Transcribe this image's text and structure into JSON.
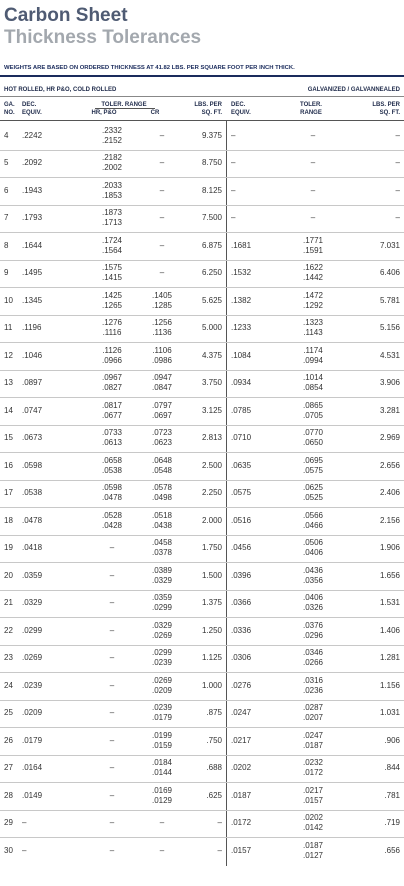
{
  "header": {
    "title_lines": [
      "Carbon Sheet",
      "Thickness Tolerances"
    ],
    "subtitle": "WEIGHTS ARE BASED ON ORDERED THICKNESS AT 41.82 LBS. PER SQUARE FOOT PER INCH THICK."
  },
  "table": {
    "group_headers": [
      "HOT ROLLED, HR P&O, COLD ROLLED",
      "GALVANIZED / GALVANNEALED"
    ],
    "columns": {
      "ga": [
        "GA.",
        "NO."
      ],
      "dec": [
        "DEC.",
        "EQUIV."
      ],
      "tol": "TOLER. RANGE",
      "hr": "HR, P&O",
      "cr": "CR",
      "lbs": [
        "LBS. PER",
        "SQ. FT."
      ],
      "gdec": [
        "DEC.",
        "EQUIV."
      ],
      "gtol": [
        "TOLER.",
        "RANGE"
      ],
      "glbs": [
        "LBS. PER",
        "SQ. FT."
      ]
    },
    "rows": [
      {
        "ga": "4",
        "dec": ".2242",
        "hr": [
          ".2332",
          ".2152"
        ],
        "cr": [
          "–"
        ],
        "lbs": "9.375",
        "gdec": "–",
        "gtol": [
          "–"
        ],
        "glbs": "–"
      },
      {
        "ga": "5",
        "dec": ".2092",
        "hr": [
          ".2182",
          ".2002"
        ],
        "cr": [
          "–"
        ],
        "lbs": "8.750",
        "gdec": "–",
        "gtol": [
          "–"
        ],
        "glbs": "–"
      },
      {
        "ga": "6",
        "dec": ".1943",
        "hr": [
          ".2033",
          ".1853"
        ],
        "cr": [
          "–"
        ],
        "lbs": "8.125",
        "gdec": "–",
        "gtol": [
          "–"
        ],
        "glbs": "–"
      },
      {
        "ga": "7",
        "dec": ".1793",
        "hr": [
          ".1873",
          ".1713"
        ],
        "cr": [
          "–"
        ],
        "lbs": "7.500",
        "gdec": "–",
        "gtol": [
          "–"
        ],
        "glbs": "–"
      },
      {
        "ga": "8",
        "dec": ".1644",
        "hr": [
          ".1724",
          ".1564"
        ],
        "cr": [
          "–"
        ],
        "lbs": "6.875",
        "gdec": ".1681",
        "gtol": [
          ".1771",
          ".1591"
        ],
        "glbs": "7.031"
      },
      {
        "ga": "9",
        "dec": ".1495",
        "hr": [
          ".1575",
          ".1415"
        ],
        "cr": [
          "–"
        ],
        "lbs": "6.250",
        "gdec": ".1532",
        "gtol": [
          ".1622",
          ".1442"
        ],
        "glbs": "6.406"
      },
      {
        "ga": "10",
        "dec": ".1345",
        "hr": [
          ".1425",
          ".1265"
        ],
        "cr": [
          ".1405",
          ".1285"
        ],
        "lbs": "5.625",
        "gdec": ".1382",
        "gtol": [
          ".1472",
          ".1292"
        ],
        "glbs": "5.781"
      },
      {
        "ga": "11",
        "dec": ".1196",
        "hr": [
          ".1276",
          ".1116"
        ],
        "cr": [
          ".1256",
          ".1136"
        ],
        "lbs": "5.000",
        "gdec": ".1233",
        "gtol": [
          ".1323",
          ".1143"
        ],
        "glbs": "5.156"
      },
      {
        "ga": "12",
        "dec": ".1046",
        "hr": [
          ".1126",
          ".0966"
        ],
        "cr": [
          ".1106",
          ".0986"
        ],
        "lbs": "4.375",
        "gdec": ".1084",
        "gtol": [
          ".1174",
          ".0994"
        ],
        "glbs": "4.531"
      },
      {
        "ga": "13",
        "dec": ".0897",
        "hr": [
          ".0967",
          ".0827"
        ],
        "cr": [
          ".0947",
          ".0847"
        ],
        "lbs": "3.750",
        "gdec": ".0934",
        "gtol": [
          ".1014",
          ".0854"
        ],
        "glbs": "3.906"
      },
      {
        "ga": "14",
        "dec": ".0747",
        "hr": [
          ".0817",
          ".0677"
        ],
        "cr": [
          ".0797",
          ".0697"
        ],
        "lbs": "3.125",
        "gdec": ".0785",
        "gtol": [
          ".0865",
          ".0705"
        ],
        "glbs": "3.281"
      },
      {
        "ga": "15",
        "dec": ".0673",
        "hr": [
          ".0733",
          ".0613"
        ],
        "cr": [
          ".0723",
          ".0623"
        ],
        "lbs": "2.813",
        "gdec": ".0710",
        "gtol": [
          ".0770",
          ".0650"
        ],
        "glbs": "2.969"
      },
      {
        "ga": "16",
        "dec": ".0598",
        "hr": [
          ".0658",
          ".0538"
        ],
        "cr": [
          ".0648",
          ".0548"
        ],
        "lbs": "2.500",
        "gdec": ".0635",
        "gtol": [
          ".0695",
          ".0575"
        ],
        "glbs": "2.656"
      },
      {
        "ga": "17",
        "dec": ".0538",
        "hr": [
          ".0598",
          ".0478"
        ],
        "cr": [
          ".0578",
          ".0498"
        ],
        "lbs": "2.250",
        "gdec": ".0575",
        "gtol": [
          ".0625",
          ".0525"
        ],
        "glbs": "2.406"
      },
      {
        "ga": "18",
        "dec": ".0478",
        "hr": [
          ".0528",
          ".0428"
        ],
        "cr": [
          ".0518",
          ".0438"
        ],
        "lbs": "2.000",
        "gdec": ".0516",
        "gtol": [
          ".0566",
          ".0466"
        ],
        "glbs": "2.156"
      },
      {
        "ga": "19",
        "dec": ".0418",
        "hr": [
          "–"
        ],
        "cr": [
          ".0458",
          ".0378"
        ],
        "lbs": "1.750",
        "gdec": ".0456",
        "gtol": [
          ".0506",
          ".0406"
        ],
        "glbs": "1.906"
      },
      {
        "ga": "20",
        "dec": ".0359",
        "hr": [
          "–"
        ],
        "cr": [
          ".0389",
          ".0329"
        ],
        "lbs": "1.500",
        "gdec": ".0396",
        "gtol": [
          ".0436",
          ".0356"
        ],
        "glbs": "1.656"
      },
      {
        "ga": "21",
        "dec": ".0329",
        "hr": [
          "–"
        ],
        "cr": [
          ".0359",
          ".0299"
        ],
        "lbs": "1.375",
        "gdec": ".0366",
        "gtol": [
          ".0406",
          ".0326"
        ],
        "glbs": "1.531"
      },
      {
        "ga": "22",
        "dec": ".0299",
        "hr": [
          "–"
        ],
        "cr": [
          ".0329",
          ".0269"
        ],
        "lbs": "1.250",
        "gdec": ".0336",
        "gtol": [
          ".0376",
          ".0296"
        ],
        "glbs": "1.406"
      },
      {
        "ga": "23",
        "dec": ".0269",
        "hr": [
          "–"
        ],
        "cr": [
          ".0299",
          ".0239"
        ],
        "lbs": "1.125",
        "gdec": ".0306",
        "gtol": [
          ".0346",
          ".0266"
        ],
        "glbs": "1.281"
      },
      {
        "ga": "24",
        "dec": ".0239",
        "hr": [
          "–"
        ],
        "cr": [
          ".0269",
          ".0209"
        ],
        "lbs": "1.000",
        "gdec": ".0276",
        "gtol": [
          ".0316",
          ".0236"
        ],
        "glbs": "1.156"
      },
      {
        "ga": "25",
        "dec": ".0209",
        "hr": [
          "–"
        ],
        "cr": [
          ".0239",
          ".0179"
        ],
        "lbs": ".875",
        "gdec": ".0247",
        "gtol": [
          ".0287",
          ".0207"
        ],
        "glbs": "1.031"
      },
      {
        "ga": "26",
        "dec": ".0179",
        "hr": [
          "–"
        ],
        "cr": [
          ".0199",
          ".0159"
        ],
        "lbs": ".750",
        "gdec": ".0217",
        "gtol": [
          ".0247",
          ".0187"
        ],
        "glbs": ".906"
      },
      {
        "ga": "27",
        "dec": ".0164",
        "hr": [
          "–"
        ],
        "cr": [
          ".0184",
          ".0144"
        ],
        "lbs": ".688",
        "gdec": ".0202",
        "gtol": [
          ".0232",
          ".0172"
        ],
        "glbs": ".844"
      },
      {
        "ga": "28",
        "dec": ".0149",
        "hr": [
          "–"
        ],
        "cr": [
          ".0169",
          ".0129"
        ],
        "lbs": ".625",
        "gdec": ".0187",
        "gtol": [
          ".0217",
          ".0157"
        ],
        "glbs": ".781"
      },
      {
        "ga": "29",
        "dec": "–",
        "hr": [
          "–"
        ],
        "cr": [
          "–"
        ],
        "lbs": "–",
        "gdec": ".0172",
        "gtol": [
          ".0202",
          ".0142"
        ],
        "glbs": ".719"
      },
      {
        "ga": "30",
        "dec": "–",
        "hr": [
          "–"
        ],
        "cr": [
          "–"
        ],
        "lbs": "–",
        "gdec": ".0157",
        "gtol": [
          ".0187",
          ".0127"
        ],
        "glbs": ".656"
      }
    ]
  }
}
